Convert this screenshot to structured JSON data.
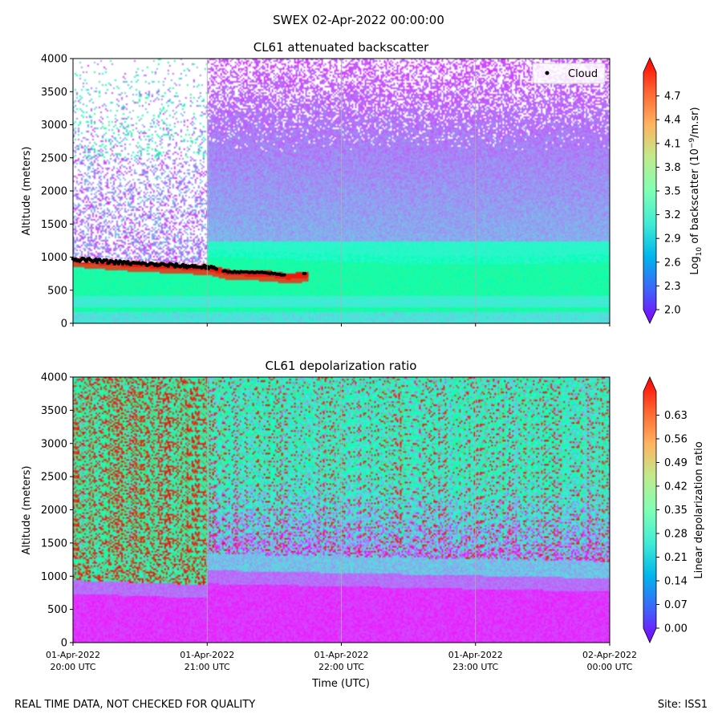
{
  "suptitle": "SWEX 02-Apr-2022 00:00:00",
  "footer_left": "REAL TIME DATA, NOT CHECKED FOR QUALITY",
  "footer_right": "Site: ISS1",
  "xlabel": "Time (UTC)",
  "x_ticks": [
    {
      "date": "01-Apr-2022",
      "time": "20:00 UTC"
    },
    {
      "date": "01-Apr-2022",
      "time": "21:00 UTC"
    },
    {
      "date": "01-Apr-2022",
      "time": "22:00 UTC"
    },
    {
      "date": "01-Apr-2022",
      "time": "23:00 UTC"
    },
    {
      "date": "02-Apr-2022",
      "time": "00:00 UTC"
    }
  ],
  "chart_data": [
    {
      "type": "heatmap",
      "title": "CL61 attenuated backscatter",
      "ylabel": "Altitude (meters)",
      "xlim_hours": [
        20,
        24
      ],
      "ylim": [
        0,
        4000
      ],
      "yticks": [
        0,
        500,
        1000,
        1500,
        2000,
        2500,
        3000,
        3500,
        4000
      ],
      "colorbar": {
        "label_prefix": "Log",
        "label_sub": "10",
        "label_mid": " of backscatter (10",
        "label_sup": "−9",
        "label_suffix": "/m.sr)",
        "min": 2.0,
        "max": 5.0,
        "ticks": [
          "2.0",
          "2.3",
          "2.6",
          "2.9",
          "3.2",
          "3.5",
          "3.8",
          "4.1",
          "4.4",
          "4.7"
        ]
      },
      "legend": {
        "label": "Cloud",
        "placement": "upper-right"
      },
      "cloud_base": [
        {
          "t": 20.0,
          "alt": 970
        },
        {
          "t": 20.2,
          "alt": 940
        },
        {
          "t": 20.4,
          "alt": 910
        },
        {
          "t": 20.6,
          "alt": 890
        },
        {
          "t": 20.8,
          "alt": 870
        },
        {
          "t": 21.0,
          "alt": 850
        },
        {
          "t": 21.15,
          "alt": 780
        },
        {
          "t": 21.3,
          "alt": 770
        },
        {
          "t": 21.45,
          "alt": 760
        },
        {
          "t": 21.6,
          "alt": 720
        },
        {
          "t": 21.75,
          "alt": 750
        }
      ]
    },
    {
      "type": "heatmap",
      "title": "CL61 depolarization ratio",
      "ylabel": "Altitude (meters)",
      "xlim_hours": [
        20,
        24
      ],
      "ylim": [
        0,
        4000
      ],
      "yticks": [
        0,
        500,
        1000,
        1500,
        2000,
        2500,
        3000,
        3500,
        4000
      ],
      "colorbar": {
        "label": "Linear depolarization ratio",
        "min": 0.0,
        "max": 0.7,
        "ticks": [
          "0.00",
          "0.07",
          "0.14",
          "0.21",
          "0.28",
          "0.35",
          "0.42",
          "0.49",
          "0.56",
          "0.63"
        ]
      }
    }
  ]
}
